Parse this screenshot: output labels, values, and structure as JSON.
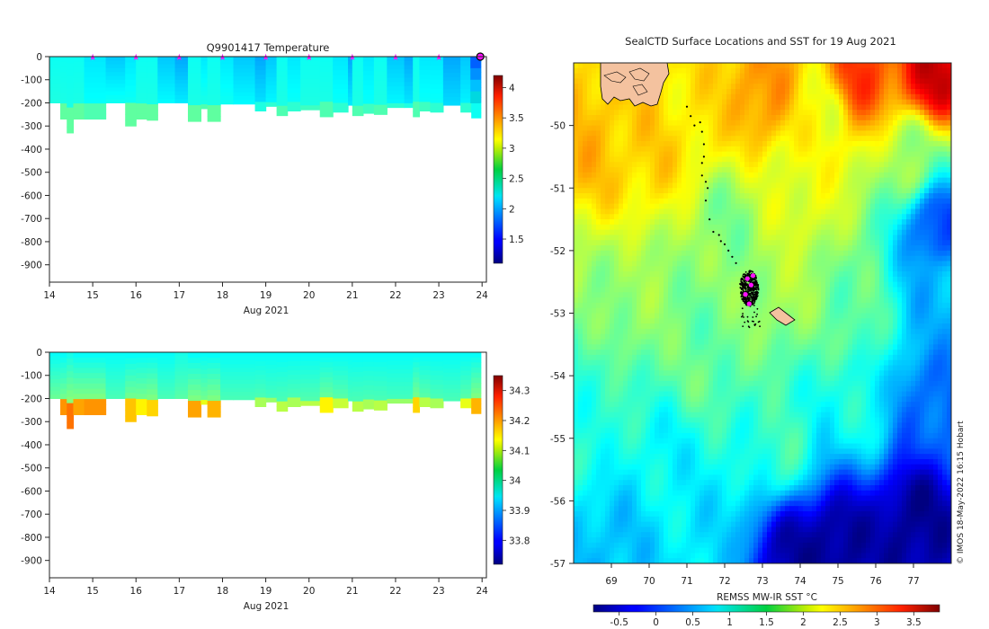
{
  "chart_data": [
    {
      "type": "heatmap",
      "title": "Q9901417  Temperature",
      "xlabel": "Aug 2021",
      "ylabel": "",
      "x_ticks": [
        14,
        15,
        16,
        17,
        18,
        19,
        20,
        21,
        22,
        23,
        24
      ],
      "xlim": [
        14,
        24.1
      ],
      "y_ticks": [
        0,
        -100,
        -200,
        -300,
        -400,
        -500,
        -600,
        -700,
        -800,
        -900
      ],
      "ylim": [
        -975,
        0
      ],
      "profile_markers_day": [
        15,
        16,
        17,
        18,
        19,
        20,
        21,
        22,
        23
      ],
      "last_marker_day": 24,
      "colorbar": {
        "min": 1.1,
        "max": 4.2,
        "ticks": [
          1.5,
          2,
          2.5,
          3,
          3.5,
          4
        ]
      },
      "profiles": [
        {
          "day": 14.0,
          "max_depth": 200,
          "surface": 2.3,
          "mid": 2.35,
          "deep": 2.5
        },
        {
          "day": 14.25,
          "max_depth": 270,
          "surface": 2.3,
          "mid": 2.35,
          "deep": 2.55
        },
        {
          "day": 14.4,
          "max_depth": 330,
          "surface": 2.3,
          "mid": 2.35,
          "deep": 2.55
        },
        {
          "day": 14.55,
          "max_depth": 270,
          "surface": 2.3,
          "mid": 2.35,
          "deep": 2.55
        },
        {
          "day": 14.8,
          "max_depth": 270,
          "surface": 2.2,
          "mid": 2.3,
          "deep": 2.5
        },
        {
          "day": 15.3,
          "max_depth": 200,
          "surface": 2.1,
          "mid": 2.3,
          "deep": 2.45
        },
        {
          "day": 15.75,
          "max_depth": 300,
          "surface": 2.2,
          "mid": 2.35,
          "deep": 2.55
        },
        {
          "day": 16.0,
          "max_depth": 270,
          "surface": 2.3,
          "mid": 2.35,
          "deep": 2.55
        },
        {
          "day": 16.25,
          "max_depth": 275,
          "surface": 2.3,
          "mid": 2.35,
          "deep": 2.55
        },
        {
          "day": 16.5,
          "max_depth": 200,
          "surface": 2.1,
          "mid": 2.25,
          "deep": 2.4
        },
        {
          "day": 16.9,
          "max_depth": 200,
          "surface": 2.0,
          "mid": 2.2,
          "deep": 2.35
        },
        {
          "day": 17.2,
          "max_depth": 280,
          "surface": 2.3,
          "mid": 2.35,
          "deep": 2.55
        },
        {
          "day": 17.5,
          "max_depth": 225,
          "surface": 2.2,
          "mid": 2.35,
          "deep": 2.5
        },
        {
          "day": 17.65,
          "max_depth": 280,
          "surface": 2.3,
          "mid": 2.35,
          "deep": 2.55
        },
        {
          "day": 17.95,
          "max_depth": 205,
          "surface": 2.2,
          "mid": 2.3,
          "deep": 2.4
        },
        {
          "day": 18.25,
          "max_depth": 205,
          "surface": 2.1,
          "mid": 2.25,
          "deep": 2.4
        },
        {
          "day": 18.75,
          "max_depth": 235,
          "surface": 2.0,
          "mid": 2.2,
          "deep": 2.35
        },
        {
          "day": 19.0,
          "max_depth": 215,
          "surface": 2.1,
          "mid": 2.25,
          "deep": 2.4
        },
        {
          "day": 19.25,
          "max_depth": 255,
          "surface": 2.3,
          "mid": 2.35,
          "deep": 2.5
        },
        {
          "day": 19.5,
          "max_depth": 235,
          "surface": 2.2,
          "mid": 2.3,
          "deep": 2.4
        },
        {
          "day": 19.8,
          "max_depth": 230,
          "surface": 2.3,
          "mid": 2.35,
          "deep": 2.45
        },
        {
          "day": 20.25,
          "max_depth": 260,
          "surface": 2.3,
          "mid": 2.35,
          "deep": 2.5
        },
        {
          "day": 20.55,
          "max_depth": 240,
          "surface": 2.2,
          "mid": 2.3,
          "deep": 2.4
        },
        {
          "day": 20.9,
          "max_depth": 210,
          "surface": 2.0,
          "mid": 2.2,
          "deep": 2.35
        },
        {
          "day": 21.0,
          "max_depth": 255,
          "surface": 2.3,
          "mid": 2.35,
          "deep": 2.5
        },
        {
          "day": 21.25,
          "max_depth": 245,
          "surface": 2.2,
          "mid": 2.3,
          "deep": 2.45
        },
        {
          "day": 21.5,
          "max_depth": 250,
          "surface": 2.3,
          "mid": 2.35,
          "deep": 2.5
        },
        {
          "day": 21.8,
          "max_depth": 220,
          "surface": 2.1,
          "mid": 2.25,
          "deep": 2.4
        },
        {
          "day": 22.2,
          "max_depth": 220,
          "surface": 2.0,
          "mid": 2.2,
          "deep": 2.35
        },
        {
          "day": 22.4,
          "max_depth": 260,
          "surface": 2.3,
          "mid": 2.35,
          "deep": 2.5
        },
        {
          "day": 22.55,
          "max_depth": 235,
          "surface": 2.2,
          "mid": 2.3,
          "deep": 2.45
        },
        {
          "day": 22.8,
          "max_depth": 240,
          "surface": 2.2,
          "mid": 2.3,
          "deep": 2.4
        },
        {
          "day": 23.1,
          "max_depth": 210,
          "surface": 2.0,
          "mid": 2.15,
          "deep": 2.3
        },
        {
          "day": 23.5,
          "max_depth": 240,
          "surface": 2.1,
          "mid": 2.25,
          "deep": 2.4
        },
        {
          "day": 23.75,
          "max_depth": 265,
          "surface": 1.9,
          "mid": 2.1,
          "deep": 2.3
        }
      ]
    },
    {
      "type": "heatmap",
      "title": "",
      "xlabel": "Aug 2021",
      "ylabel": "",
      "x_ticks": [
        14,
        15,
        16,
        17,
        18,
        19,
        20,
        21,
        22,
        23,
        24
      ],
      "xlim": [
        14,
        24.1
      ],
      "y_ticks": [
        0,
        -100,
        -200,
        -300,
        -400,
        -500,
        -600,
        -700,
        -800,
        -900
      ],
      "ylim": [
        -975,
        0
      ],
      "colorbar": {
        "min": 33.72,
        "max": 34.35,
        "ticks": [
          33.8,
          33.9,
          34,
          34.1,
          34.2,
          34.3
        ]
      },
      "profiles": [
        {
          "day": 14.0,
          "max_depth": 200,
          "surface": 33.96,
          "mid": 34.02,
          "deep": 34.1
        },
        {
          "day": 14.25,
          "max_depth": 270,
          "surface": 33.96,
          "mid": 34.05,
          "deep": 34.18
        },
        {
          "day": 14.4,
          "max_depth": 330,
          "surface": 33.97,
          "mid": 34.08,
          "deep": 34.2
        },
        {
          "day": 14.55,
          "max_depth": 270,
          "surface": 33.96,
          "mid": 34.06,
          "deep": 34.17
        },
        {
          "day": 14.8,
          "max_depth": 270,
          "surface": 33.96,
          "mid": 34.06,
          "deep": 34.18
        },
        {
          "day": 15.3,
          "max_depth": 200,
          "surface": 33.96,
          "mid": 34.0,
          "deep": 34.05
        },
        {
          "day": 15.75,
          "max_depth": 300,
          "surface": 33.96,
          "mid": 34.06,
          "deep": 34.15
        },
        {
          "day": 16.0,
          "max_depth": 270,
          "surface": 33.96,
          "mid": 34.05,
          "deep": 34.12
        },
        {
          "day": 16.25,
          "max_depth": 275,
          "surface": 33.96,
          "mid": 34.06,
          "deep": 34.14
        },
        {
          "day": 16.5,
          "max_depth": 200,
          "surface": 33.96,
          "mid": 34.0,
          "deep": 34.06
        },
        {
          "day": 16.9,
          "max_depth": 200,
          "surface": 33.97,
          "mid": 34.01,
          "deep": 34.08
        },
        {
          "day": 17.2,
          "max_depth": 280,
          "surface": 33.96,
          "mid": 34.06,
          "deep": 34.17
        },
        {
          "day": 17.5,
          "max_depth": 225,
          "surface": 33.96,
          "mid": 34.03,
          "deep": 34.1
        },
        {
          "day": 17.65,
          "max_depth": 280,
          "surface": 33.96,
          "mid": 34.06,
          "deep": 34.16
        },
        {
          "day": 17.95,
          "max_depth": 205,
          "surface": 33.96,
          "mid": 34.0,
          "deep": 34.04
        },
        {
          "day": 18.25,
          "max_depth": 205,
          "surface": 33.96,
          "mid": 34.0,
          "deep": 34.04
        },
        {
          "day": 18.75,
          "max_depth": 235,
          "surface": 33.96,
          "mid": 34.01,
          "deep": 34.06
        },
        {
          "day": 19.0,
          "max_depth": 215,
          "surface": 33.96,
          "mid": 34.0,
          "deep": 34.05
        },
        {
          "day": 19.25,
          "max_depth": 255,
          "surface": 33.96,
          "mid": 34.01,
          "deep": 34.07
        },
        {
          "day": 19.5,
          "max_depth": 235,
          "surface": 33.96,
          "mid": 34.01,
          "deep": 34.06
        },
        {
          "day": 19.8,
          "max_depth": 230,
          "surface": 33.96,
          "mid": 34.01,
          "deep": 34.07
        },
        {
          "day": 20.25,
          "max_depth": 260,
          "surface": 33.96,
          "mid": 34.04,
          "deep": 34.12
        },
        {
          "day": 20.55,
          "max_depth": 240,
          "surface": 33.96,
          "mid": 34.02,
          "deep": 34.08
        },
        {
          "day": 20.9,
          "max_depth": 210,
          "surface": 33.96,
          "mid": 34.0,
          "deep": 34.05
        },
        {
          "day": 21.0,
          "max_depth": 255,
          "surface": 33.96,
          "mid": 34.01,
          "deep": 34.07
        },
        {
          "day": 21.25,
          "max_depth": 245,
          "surface": 33.96,
          "mid": 34.01,
          "deep": 34.06
        },
        {
          "day": 21.5,
          "max_depth": 250,
          "surface": 33.96,
          "mid": 34.01,
          "deep": 34.07
        },
        {
          "day": 21.8,
          "max_depth": 220,
          "surface": 33.96,
          "mid": 34.0,
          "deep": 34.05
        },
        {
          "day": 22.2,
          "max_depth": 220,
          "surface": 33.96,
          "mid": 34.0,
          "deep": 34.05
        },
        {
          "day": 22.4,
          "max_depth": 260,
          "surface": 33.96,
          "mid": 34.05,
          "deep": 34.14
        },
        {
          "day": 22.55,
          "max_depth": 235,
          "surface": 33.96,
          "mid": 34.02,
          "deep": 34.07
        },
        {
          "day": 22.8,
          "max_depth": 240,
          "surface": 33.96,
          "mid": 34.01,
          "deep": 34.06
        },
        {
          "day": 23.1,
          "max_depth": 210,
          "surface": 33.96,
          "mid": 34.0,
          "deep": 34.05
        },
        {
          "day": 23.5,
          "max_depth": 240,
          "surface": 33.96,
          "mid": 34.02,
          "deep": 34.1
        },
        {
          "day": 23.75,
          "max_depth": 265,
          "surface": 33.96,
          "mid": 34.06,
          "deep": 34.16
        }
      ]
    },
    {
      "type": "heatmap",
      "title": "SealCTD Surface Locations and SST for 19 Aug 2021",
      "xlabel": "",
      "ylabel": "",
      "x_ticks": [
        69,
        70,
        71,
        72,
        73,
        74,
        75,
        76,
        77
      ],
      "xlim": [
        68,
        78
      ],
      "y_ticks": [
        -50,
        -51,
        -52,
        -53,
        -54,
        -55,
        -56,
        -57
      ],
      "ylim": [
        -57,
        -49
      ],
      "colorbar_label": "REMSS MW-IR SST °C",
      "colorbar": {
        "min": -0.85,
        "max": 3.85,
        "ticks": [
          -0.5,
          0,
          0.5,
          1,
          1.5,
          2,
          2.5,
          3,
          3.5
        ]
      },
      "sst_features": [
        {
          "lon": 68.6,
          "lat": -50.2,
          "sst": 2.4
        },
        {
          "lon": 70.0,
          "lat": -50.4,
          "sst": 2.3
        },
        {
          "lon": 71.2,
          "lat": -50.0,
          "sst": 2.2
        },
        {
          "lon": 73.0,
          "lat": -49.5,
          "sst": 2.6
        },
        {
          "lon": 75.5,
          "lat": -49.2,
          "sst": 3.0
        },
        {
          "lon": 77.5,
          "lat": -49.2,
          "sst": 3.5
        },
        {
          "lon": 74.6,
          "lat": -49.8,
          "sst": 2.0
        },
        {
          "lon": 74.0,
          "lat": -51.2,
          "sst": 2.0
        },
        {
          "lon": 72.0,
          "lat": -51.6,
          "sst": 1.5
        },
        {
          "lon": 69.5,
          "lat": -52.8,
          "sst": 1.6
        },
        {
          "lon": 71.5,
          "lat": -53.6,
          "sst": 1.4
        },
        {
          "lon": 73.5,
          "lat": -52.5,
          "sst": 1.7
        },
        {
          "lon": 75.5,
          "lat": -53.0,
          "sst": 1.4
        },
        {
          "lon": 77.6,
          "lat": -51.6,
          "sst": 0.0
        },
        {
          "lon": 77.6,
          "lat": -52.7,
          "sst": 0.6
        },
        {
          "lon": 77.0,
          "lat": -50.5,
          "sst": 1.6
        },
        {
          "lon": 77.4,
          "lat": -54.5,
          "sst": 0.2
        },
        {
          "lon": 77.0,
          "lat": -56.3,
          "sst": -0.8
        },
        {
          "lon": 75.0,
          "lat": -56.7,
          "sst": -0.8
        },
        {
          "lon": 73.8,
          "lat": -56.9,
          "sst": -0.7
        },
        {
          "lon": 73.5,
          "lat": -55.2,
          "sst": 1.2
        },
        {
          "lon": 70.5,
          "lat": -55.5,
          "sst": 0.9
        },
        {
          "lon": 69.0,
          "lat": -56.8,
          "sst": 0.6
        },
        {
          "lon": 71.5,
          "lat": -56.8,
          "sst": 0.8
        },
        {
          "lon": 68.5,
          "lat": -54.5,
          "sst": 1.1
        },
        {
          "lon": 75.5,
          "lat": -54.5,
          "sst": 1.0
        }
      ],
      "track_points": [
        {
          "lon": 71.0,
          "lat": -49.7
        },
        {
          "lon": 71.1,
          "lat": -49.85
        },
        {
          "lon": 71.2,
          "lat": -50.0
        },
        {
          "lon": 71.35,
          "lat": -49.95
        },
        {
          "lon": 71.4,
          "lat": -50.1
        },
        {
          "lon": 71.45,
          "lat": -50.3
        },
        {
          "lon": 71.45,
          "lat": -50.5
        },
        {
          "lon": 71.4,
          "lat": -50.6
        },
        {
          "lon": 71.4,
          "lat": -50.8
        },
        {
          "lon": 71.5,
          "lat": -50.9
        },
        {
          "lon": 71.55,
          "lat": -51.0
        },
        {
          "lon": 71.5,
          "lat": -51.2
        },
        {
          "lon": 71.6,
          "lat": -51.5
        },
        {
          "lon": 71.7,
          "lat": -51.7
        },
        {
          "lon": 71.85,
          "lat": -51.75
        },
        {
          "lon": 71.9,
          "lat": -51.85
        },
        {
          "lon": 72.0,
          "lat": -51.9
        },
        {
          "lon": 72.1,
          "lat": -52.0
        },
        {
          "lon": 72.2,
          "lat": -52.1
        },
        {
          "lon": 72.3,
          "lat": -52.2
        }
      ],
      "seal_cluster": {
        "lon": 72.65,
        "lat": -52.6,
        "spread_lon": 0.25,
        "spread_lat": 0.22
      },
      "highlight_points": [
        {
          "lon": 72.6,
          "lat": -52.45
        },
        {
          "lon": 72.7,
          "lat": -52.55
        },
        {
          "lon": 72.55,
          "lat": -52.7
        },
        {
          "lon": 72.65,
          "lat": -52.85
        },
        {
          "lon": 72.75,
          "lat": -52.4
        }
      ]
    }
  ],
  "credit": "© IMOS 18-May-2022 16:15 Hobart",
  "colors": {
    "land_fill": "#f4c29f",
    "land_stroke": "#000000",
    "marker": "#ff10ff",
    "track": "#000000"
  }
}
